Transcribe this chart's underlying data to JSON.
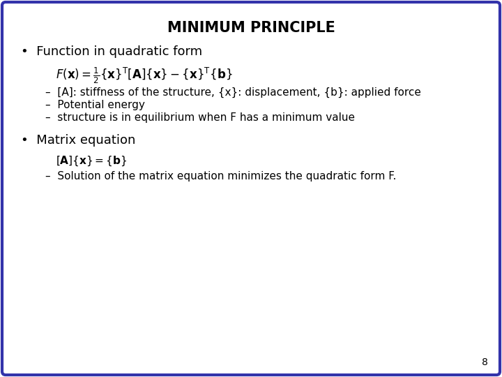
{
  "title": "MINIMUM PRINCIPLE",
  "title_fontsize": 15,
  "background_color": "#ffffff",
  "border_color": "#3333aa",
  "border_linewidth": 3,
  "bullet1_header": "Function in quadratic form",
  "sub_bullets1": [
    "–  [A]: stiffness of the structure, {x}: displacement, {b}: applied force",
    "–  Potential energy",
    "–  structure is in equilibrium when F has a minimum value"
  ],
  "bullet2_header": "Matrix equation",
  "sub_bullets2": [
    "–  Solution of the matrix equation minimizes the quadratic form F."
  ],
  "page_number": "8",
  "text_color": "#000000",
  "header_fontsize": 13,
  "sub_bullet_fontsize": 11,
  "formula1_fontsize": 12,
  "formula2_fontsize": 11
}
